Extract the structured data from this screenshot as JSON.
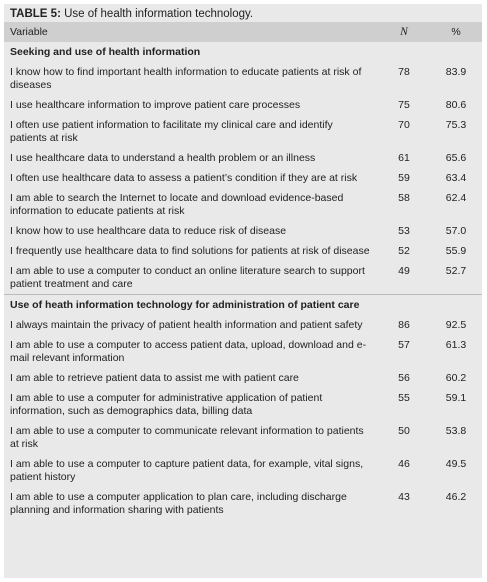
{
  "title": {
    "label": "TABLE 5:",
    "text": "Use of health information technology."
  },
  "table": {
    "columns": [
      "Variable",
      "N",
      "%"
    ],
    "sections": [
      {
        "heading": "Seeking and use of health information",
        "rows": [
          [
            "I know how to find important health information to educate patients at risk of diseases",
            "78",
            "83.9"
          ],
          [
            "I use healthcare information to improve patient care processes",
            "75",
            "80.6"
          ],
          [
            "I often use patient information to facilitate my clinical care and identify patients at risk",
            "70",
            "75.3"
          ],
          [
            "I use healthcare data to understand a health problem or an illness",
            "61",
            "65.6"
          ],
          [
            "I often use healthcare data to assess a patient’s condition if they are at risk",
            "59",
            "63.4"
          ],
          [
            "I am able to search the Internet to locate and download evidence-based information to educate patients at risk",
            "58",
            "62.4"
          ],
          [
            "I know how to use healthcare data to reduce risk of disease",
            "53",
            "57.0"
          ],
          [
            "I frequently use healthcare data to find solutions for patients at risk of disease",
            "52",
            "55.9"
          ],
          [
            "I am able to use a computer to conduct an online literature search to support patient treatment and care",
            "49",
            "52.7"
          ]
        ]
      },
      {
        "heading": "Use of heath information technology for administration of patient care",
        "rows": [
          [
            "I always maintain the privacy of patient health information and patient safety",
            "86",
            "92.5"
          ],
          [
            "I am able to use a computer to access patient data, upload, download and e-mail relevant information",
            "57",
            "61.3"
          ],
          [
            "I am able to retrieve patient data to assist me with patient care",
            "56",
            "60.2"
          ],
          [
            "I am able to use a computer for administrative application of patient information, such as demographics data, billing data",
            "55",
            "59.1"
          ],
          [
            "I am able to use a computer to communicate relevant information to patients at risk",
            "50",
            "53.8"
          ],
          [
            "I am able to use a computer to capture patient data, for example, vital signs, patient history",
            "46",
            "49.5"
          ],
          [
            "I am able to use a computer application to plan care, including discharge planning and information sharing with patients",
            "43",
            "46.2"
          ]
        ]
      }
    ]
  }
}
